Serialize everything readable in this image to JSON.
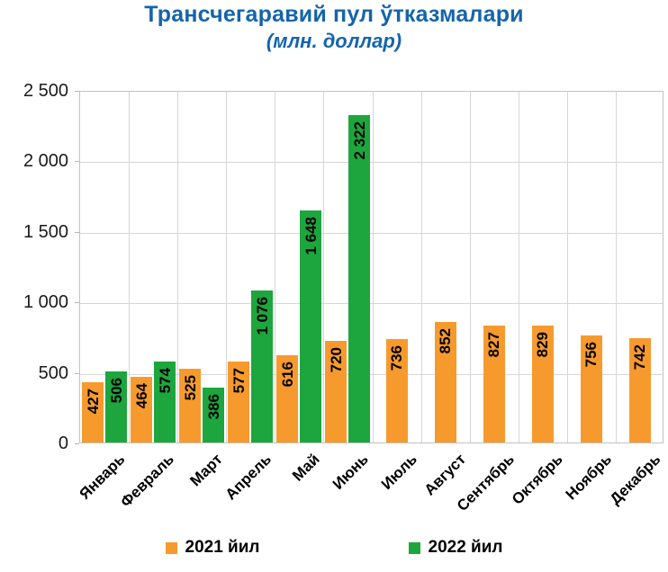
{
  "title": "Трансчегаравий пул ўтказмалари",
  "subtitle": "(млн. доллар)",
  "colors": {
    "title_text": "#1464ac",
    "series_2021": "#f79a2e",
    "series_2022": "#1da63d",
    "grid": "#d6d6d6",
    "plot_border": "#c3c3c3",
    "value_text": "#000000",
    "axis_text": "#1a1a1a"
  },
  "legend": [
    {
      "label": "2021 йил",
      "color": "#f79a2e"
    },
    {
      "label": "2022 йил",
      "color": "#1da63d"
    }
  ],
  "chart_data": {
    "type": "bar",
    "title": "Трансчегаравий пул ўтказмалари",
    "subtitle": "(млн. доллар)",
    "categories": [
      "Январь",
      "Февраль",
      "Март",
      "Апрель",
      "Май",
      "Июнь",
      "Июль",
      "Август",
      "Сентябрь",
      "Октябрь",
      "Ноябрь",
      "Декабрь"
    ],
    "series": [
      {
        "name": "2021 йил",
        "color": "#f79a2e",
        "values": [
          427,
          464,
          525,
          577,
          616,
          720,
          736,
          852,
          827,
          829,
          756,
          742
        ],
        "labels": [
          "427",
          "464",
          "525",
          "577",
          "616",
          "720",
          "736",
          "852",
          "827",
          "829",
          "756",
          "742"
        ]
      },
      {
        "name": "2022 йил",
        "color": "#1da63d",
        "values": [
          506,
          574,
          386,
          1076,
          1648,
          2322,
          null,
          null,
          null,
          null,
          null,
          null
        ],
        "labels": [
          "506",
          "574",
          "386",
          "1 076",
          "1 648",
          "2 322",
          null,
          null,
          null,
          null,
          null,
          null
        ]
      }
    ],
    "xlabel": "",
    "ylabel": "",
    "ylim": [
      0,
      2500
    ],
    "yticks": [
      0,
      500,
      1000,
      1500,
      2000,
      2500
    ],
    "ytick_labels": [
      "0",
      "500",
      "1 000",
      "1 500",
      "2 000",
      "2 500"
    ],
    "grid": true,
    "legend_position": "bottom",
    "value_label_rotation": 90,
    "xtick_rotation": 45
  }
}
